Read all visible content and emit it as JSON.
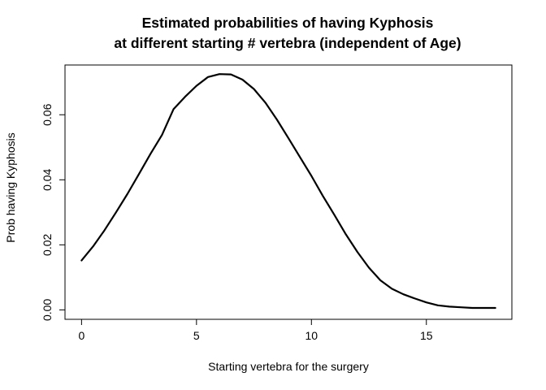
{
  "chart_data": {
    "type": "line",
    "title_lines": [
      "Estimated probabilities of having Kyphosis",
      "at different starting # vertebra (independent of Age)"
    ],
    "xlabel": "Starting vertebra for the surgery",
    "ylabel": "Prob having Kyphosis",
    "xlim": [
      -0.72,
      18.72
    ],
    "ylim": [
      -0.0029,
      0.0753
    ],
    "x_ticks": [
      0,
      5,
      10,
      15
    ],
    "x_tick_labels": [
      "0",
      "5",
      "10",
      "15"
    ],
    "y_ticks": [
      0.0,
      0.02,
      0.04,
      0.06
    ],
    "y_tick_labels": [
      "0.00",
      "0.02",
      "0.04",
      "0.06"
    ],
    "grid": false,
    "legend": "none",
    "series": [
      {
        "color": "#000000",
        "x": [
          0,
          0.5,
          1,
          1.5,
          2,
          2.5,
          3,
          3.5,
          4,
          4.5,
          5,
          5.5,
          6,
          6.5,
          7,
          7.5,
          8,
          8.5,
          9,
          9.5,
          10,
          10.5,
          11,
          11.5,
          12,
          12.5,
          13,
          13.5,
          14,
          14.5,
          15,
          15.5,
          16,
          16.5,
          17,
          17.5,
          18
        ],
        "y": [
          0.0152,
          0.0195,
          0.0245,
          0.03,
          0.0357,
          0.0418,
          0.048,
          0.0538,
          0.0617,
          0.0655,
          0.0689,
          0.0716,
          0.0725,
          0.0724,
          0.0708,
          0.0679,
          0.0637,
          0.0585,
          0.0528,
          0.047,
          0.0412,
          0.035,
          0.0292,
          0.0232,
          0.0178,
          0.013,
          0.0091,
          0.0065,
          0.0048,
          0.0035,
          0.0023,
          0.0014,
          0.001,
          0.0008,
          0.0006,
          0.0006,
          0.0006
        ]
      }
    ]
  }
}
